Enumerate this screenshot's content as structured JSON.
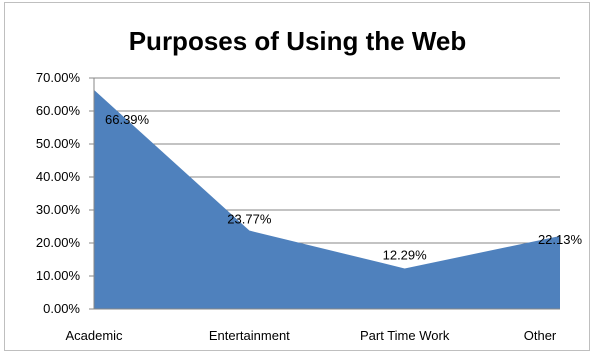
{
  "chart_data": {
    "type": "area",
    "title": "Purposes of Using the Web",
    "categories": [
      "Academic",
      "Entertainment",
      "Part Time Work",
      "Other"
    ],
    "values": [
      66.39,
      23.77,
      12.29,
      22.13
    ],
    "data_labels": [
      "66.39%",
      "23.77%",
      "12.29%",
      "22.13%"
    ],
    "ylim": [
      0,
      70
    ],
    "yticks": [
      "0.00%",
      "10.00%",
      "20.00%",
      "30.00%",
      "40.00%",
      "50.00%",
      "60.00%",
      "70.00%"
    ],
    "grid": true,
    "legend": "none",
    "color": "#4f81bd"
  }
}
